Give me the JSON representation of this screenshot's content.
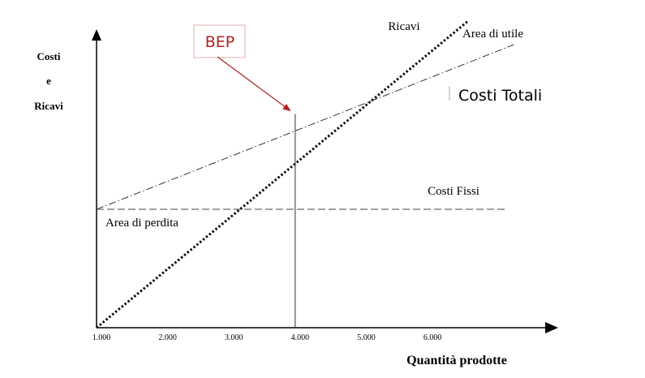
{
  "chart_data": {
    "type": "line",
    "x_ticks": [
      "1.000",
      "2.000",
      "3.000",
      "4.000",
      "5.000",
      "6.000"
    ],
    "x_tick_values": [
      1000,
      2000,
      3000,
      4000,
      5000,
      6000
    ],
    "xlabel": "Quantità prodotte",
    "ylabel_lines": [
      "Costi",
      "e",
      "Ricavi"
    ],
    "xlim": [
      1000,
      7800
    ],
    "ylim": [
      0,
      100
    ],
    "grid": false,
    "series": [
      {
        "name": "Ricavi",
        "x": [
          1000,
          6600
        ],
        "y": [
          0,
          106
        ],
        "style": "dotted",
        "color": "#111111"
      },
      {
        "name": "Costi Totali",
        "x": [
          1000,
          7300
        ],
        "y": [
          41,
          98
        ],
        "style": "dash-dot",
        "color": "#333333"
      },
      {
        "name": "Costi Fissi",
        "x": [
          1000,
          7200
        ],
        "y": [
          41,
          41
        ],
        "style": "dashed",
        "color": "#444444"
      }
    ],
    "annotations": {
      "bep": {
        "label": "BEP",
        "x": 4000,
        "y": 74,
        "color": "#b02020"
      },
      "profit_area": "Area di utile",
      "loss_area": "Area di perdita"
    }
  }
}
